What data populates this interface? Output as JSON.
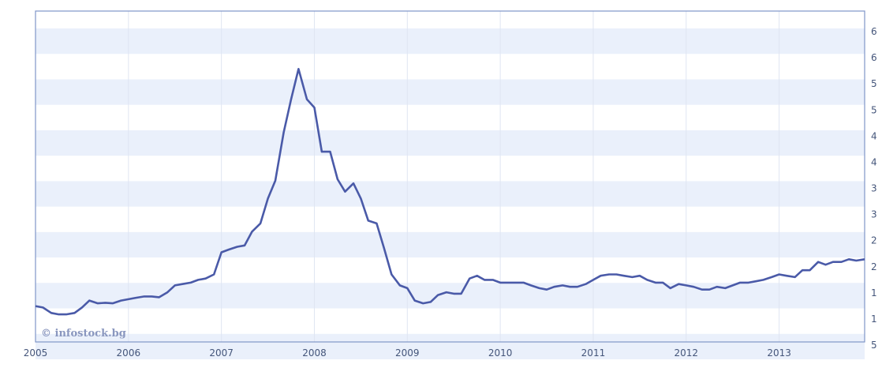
{
  "watermark": {
    "text": "© infostock.bg"
  },
  "chart_data": {
    "type": "line",
    "title": "",
    "xlabel": "",
    "ylabel": "",
    "x_axis_labels": [
      "2005",
      "2006",
      "2007",
      "2008",
      "2009",
      "2010",
      "2011",
      "2012",
      "2013"
    ],
    "y_axis_labels": [
      "6",
      "6",
      "5",
      "5",
      "4",
      "4",
      "3",
      "3",
      "2",
      "2",
      "1",
      "1",
      "5"
    ],
    "xlim": [
      2005.0,
      2013.92
    ],
    "ylim": [
      0,
      12
    ],
    "grid": true,
    "legend": "none",
    "colors": {
      "line": "#4a5aa8",
      "band": "#eaf0fb",
      "border": "#7f95c8",
      "tick_label": "#44557a"
    },
    "series": [
      {
        "x": [
          2005.0,
          2005.08,
          2005.17,
          2005.25,
          2005.33,
          2005.42,
          2005.5,
          2005.58,
          2005.67,
          2005.75,
          2005.83,
          2005.92,
          2006.0,
          2006.08,
          2006.17,
          2006.25,
          2006.33,
          2006.42,
          2006.5,
          2006.58,
          2006.67,
          2006.75,
          2006.83,
          2006.92,
          2007.0,
          2007.08,
          2007.17,
          2007.25,
          2007.33,
          2007.42,
          2007.5,
          2007.58,
          2007.67,
          2007.75,
          2007.83,
          2007.92,
          2008.0,
          2008.08,
          2008.17,
          2008.25,
          2008.33,
          2008.42,
          2008.5,
          2008.58,
          2008.67,
          2008.75,
          2008.83,
          2008.92,
          2009.0,
          2009.08,
          2009.17,
          2009.25,
          2009.33,
          2009.42,
          2009.5,
          2009.58,
          2009.67,
          2009.75,
          2009.83,
          2009.92,
          2010.0,
          2010.08,
          2010.17,
          2010.25,
          2010.33,
          2010.42,
          2010.5,
          2010.58,
          2010.67,
          2010.75,
          2010.83,
          2010.92,
          2011.0,
          2011.08,
          2011.17,
          2011.25,
          2011.33,
          2011.42,
          2011.5,
          2011.58,
          2011.67,
          2011.75,
          2011.83,
          2011.92,
          2012.0,
          2012.08,
          2012.17,
          2012.25,
          2012.33,
          2012.42,
          2012.5,
          2012.58,
          2012.67,
          2012.75,
          2012.83,
          2012.92,
          2013.0,
          2013.08,
          2013.17,
          2013.25,
          2013.33,
          2013.42,
          2013.5,
          2013.58,
          2013.67,
          2013.75,
          2013.83,
          2013.92
        ],
        "y": [
          1.3,
          1.25,
          1.05,
          1.0,
          1.0,
          1.05,
          1.25,
          1.5,
          1.4,
          1.42,
          1.4,
          1.5,
          1.55,
          1.6,
          1.65,
          1.65,
          1.62,
          1.8,
          2.05,
          2.1,
          2.15,
          2.25,
          2.3,
          2.45,
          3.25,
          3.35,
          3.45,
          3.5,
          4.0,
          4.3,
          5.2,
          5.85,
          7.6,
          8.8,
          9.9,
          8.8,
          8.5,
          6.9,
          6.9,
          5.9,
          5.45,
          5.75,
          5.2,
          4.4,
          4.3,
          3.4,
          2.45,
          2.05,
          1.95,
          1.5,
          1.4,
          1.45,
          1.7,
          1.8,
          1.75,
          1.75,
          2.3,
          2.4,
          2.25,
          2.25,
          2.15,
          2.15,
          2.15,
          2.15,
          2.05,
          1.95,
          1.9,
          2.0,
          2.05,
          2.0,
          2.0,
          2.1,
          2.25,
          2.4,
          2.45,
          2.45,
          2.4,
          2.35,
          2.4,
          2.25,
          2.15,
          2.15,
          1.95,
          2.1,
          2.05,
          2.0,
          1.9,
          1.9,
          2.0,
          1.95,
          2.05,
          2.15,
          2.15,
          2.2,
          2.25,
          2.35,
          2.45,
          2.4,
          2.35,
          2.6,
          2.6,
          2.9,
          2.8,
          2.9,
          2.9,
          3.0,
          2.95,
          3.0
        ]
      }
    ]
  }
}
